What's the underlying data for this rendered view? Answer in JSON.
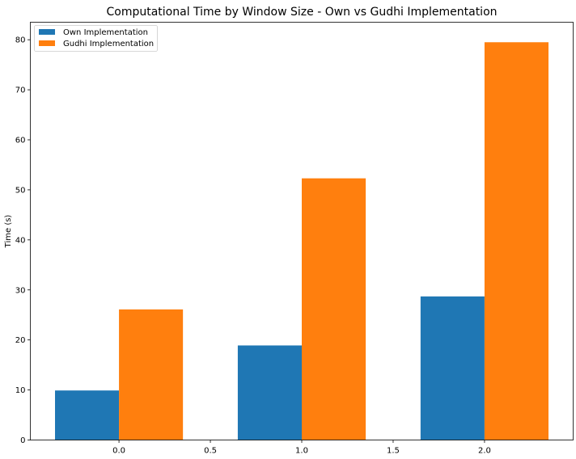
{
  "chart_data": {
    "type": "bar",
    "title": "Computational Time by Window Size - Own vs Gudhi Implementation",
    "xlabel": "",
    "ylabel": "Time (s)",
    "x": [
      0,
      1,
      2
    ],
    "bar_width": 0.35,
    "series": [
      {
        "name": "Own Implementation",
        "color": "#1f77b4",
        "values": [
          9.9,
          18.9,
          28.7
        ]
      },
      {
        "name": "Gudhi Implementation",
        "color": "#ff7f0e",
        "values": [
          26.1,
          52.3,
          79.5
        ]
      }
    ],
    "xlim": [
      -0.485,
      2.485
    ],
    "ylim": [
      0,
      83.5
    ],
    "xticks": [
      0.0,
      0.5,
      1.0,
      1.5,
      2.0
    ],
    "xtick_labels": [
      "0.0",
      "0.5",
      "1.0",
      "1.5",
      "2.0"
    ],
    "yticks": [
      0,
      10,
      20,
      30,
      40,
      50,
      60,
      70,
      80
    ],
    "ytick_labels": [
      "0",
      "10",
      "20",
      "30",
      "40",
      "50",
      "60",
      "70",
      "80"
    ],
    "grid": false,
    "legend_position": "top-left"
  }
}
